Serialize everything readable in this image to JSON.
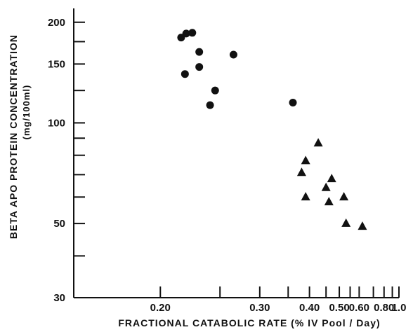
{
  "chart_data": {
    "type": "scatter",
    "title": "",
    "xlabel": "FRACTIONAL  CATABOLIC  RATE  (% IV Pool / Day)",
    "ylabel_line1": "BETA  APO PROTEIN  CONCENTRATION",
    "ylabel_line2": "(mg/100ml)",
    "x_scale": "reciprocal",
    "y_scale": "log",
    "xlim": [
      0.155,
      1.0
    ],
    "ylim": [
      30,
      220
    ],
    "x_ticks": [
      0.2,
      0.3,
      0.4,
      0.5,
      0.6,
      0.8,
      1.0
    ],
    "x_tick_labels": [
      "0.20",
      "0.30",
      "0.40",
      "0.50",
      "0.60",
      "0.80",
      "1.0"
    ],
    "x_minor_ticks": [
      0.25,
      0.35,
      0.45,
      0.55,
      0.7,
      0.9
    ],
    "y_ticks": [
      30,
      50,
      100,
      150,
      200
    ],
    "y_tick_labels": [
      "30",
      "50",
      "100",
      "150",
      "200"
    ],
    "y_minor_ticks": [
      40,
      60,
      70,
      80,
      90,
      125,
      175
    ],
    "grid": false,
    "legend": "none",
    "series": [
      {
        "marker": "circle",
        "color": "#111111",
        "points": [
          [
            0.215,
            180
          ],
          [
            0.219,
            185
          ],
          [
            0.224,
            186
          ],
          [
            0.23,
            163
          ],
          [
            0.23,
            147
          ],
          [
            0.218,
            140
          ],
          [
            0.265,
            160
          ],
          [
            0.245,
            125
          ],
          [
            0.24,
            113
          ],
          [
            0.36,
            115
          ]
        ]
      },
      {
        "marker": "triangle",
        "color": "#111111",
        "points": [
          [
            0.425,
            87
          ],
          [
            0.39,
            77
          ],
          [
            0.38,
            71
          ],
          [
            0.47,
            68
          ],
          [
            0.45,
            64
          ],
          [
            0.39,
            60
          ],
          [
            0.46,
            58
          ],
          [
            0.52,
            60
          ],
          [
            0.53,
            50
          ],
          [
            0.62,
            49
          ]
        ]
      }
    ]
  }
}
